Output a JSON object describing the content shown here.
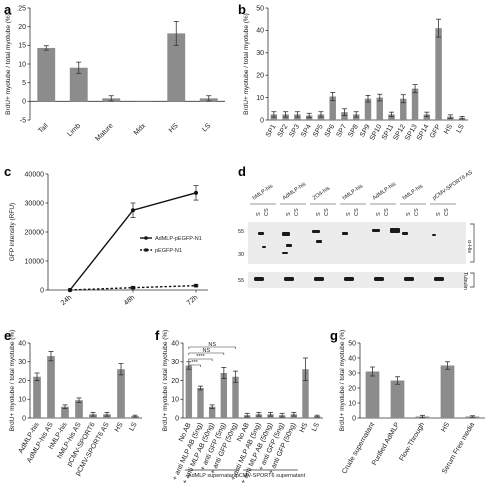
{
  "colors": {
    "bar": "#8c8c8c",
    "axis": "#333333",
    "band": "#1a1a1a",
    "blot_bg": "#e9e9e9"
  },
  "panels": {
    "a": {
      "letter": "a"
    },
    "b": {
      "letter": "b"
    },
    "c": {
      "letter": "c"
    },
    "d": {
      "letter": "d"
    },
    "e": {
      "letter": "e"
    },
    "f": {
      "letter": "f"
    },
    "g": {
      "letter": "g"
    }
  },
  "chart_data": [
    {
      "id": "a",
      "type": "bar",
      "ylabel": "BrdU+ myotube / total myotube (%)",
      "ylim": [
        -5,
        25
      ],
      "yticks": [
        -5,
        0,
        5,
        10,
        15,
        20,
        25
      ],
      "categories": [
        "Tail",
        "Limb",
        "Mature",
        "Mdx",
        "HS",
        "LS"
      ],
      "values": [
        14.3,
        9.0,
        0.8,
        0.0,
        18.2,
        0.8
      ],
      "errors": [
        0.6,
        1.5,
        0.7,
        0.0,
        3.2,
        0.7
      ]
    },
    {
      "id": "b",
      "type": "bar",
      "ylabel": "BrdU+ myotube / total myotube (%)",
      "ylim": [
        0,
        50
      ],
      "yticks": [
        0,
        10,
        20,
        30,
        40,
        50
      ],
      "categories": [
        "SP1",
        "SP2",
        "SP3",
        "SP4",
        "SP5",
        "SP6",
        "SP7",
        "SP8",
        "SP9",
        "SP10",
        "SP11",
        "SP12",
        "SP13",
        "SP14",
        "GFP",
        "HS",
        "LS"
      ],
      "values": [
        2.5,
        2.5,
        2.5,
        2.0,
        2.5,
        10.5,
        3.5,
        2.5,
        9.5,
        10.0,
        2.5,
        9.5,
        14.0,
        2.5,
        41.0,
        1.5,
        1.0
      ],
      "errors": [
        1.2,
        1.2,
        1.2,
        1.0,
        1.2,
        1.8,
        1.5,
        1.2,
        1.5,
        1.5,
        1.0,
        1.8,
        1.8,
        1.0,
        4.0,
        0.8,
        0.6
      ]
    },
    {
      "id": "c",
      "type": "line",
      "ylabel": "GFP intensity (RFU)",
      "ylim": [
        0,
        40000
      ],
      "yticks": [
        0,
        10000,
        20000,
        30000,
        40000
      ],
      "categories": [
        "24h",
        "48h",
        "72h"
      ],
      "series": [
        {
          "name": "AdMLP-pEGFP-N1",
          "values": [
            0,
            27500,
            33500
          ],
          "errors": [
            0,
            2500,
            2500
          ],
          "style": "solid"
        },
        {
          "name": "pEGFP-N1",
          "values": [
            0,
            800,
            1500
          ],
          "errors": [
            0,
            300,
            300
          ],
          "style": "dashed"
        }
      ]
    },
    {
      "id": "e",
      "type": "bar",
      "ylabel": "BrdU+ myotube / total myotube (%)",
      "ylim": [
        0,
        40
      ],
      "yticks": [
        0,
        10,
        20,
        30,
        40
      ],
      "categories": [
        "AdMLP-his",
        "AdMLP-his AS",
        "hMLP-his",
        "hMLP-his AS",
        "pCMV-SPORT6",
        "pCMV-SPORT6 AS",
        "HS",
        "LS"
      ],
      "values": [
        22.0,
        33.0,
        6.0,
        9.5,
        2.0,
        2.0,
        26.0,
        1.0
      ],
      "errors": [
        2.0,
        2.5,
        1.0,
        1.2,
        1.0,
        1.0,
        3.0,
        0.5
      ]
    },
    {
      "id": "f",
      "type": "bar",
      "ylabel": "BrdU+ myotube / total myotube (%)",
      "ylim": [
        0,
        40
      ],
      "yticks": [
        0,
        10,
        20,
        30,
        40
      ],
      "categories": [
        "No AB",
        "+ anti MLP AB (5ng)",
        "+ anti MLP AB (50ng)",
        "+ anti GFP (5ng)",
        "+ anti GFP (50ng)",
        "No AB",
        "+ anti MLP AB (5ng)",
        "+ anti MLP AB (50ng)",
        "+ anti GFP (5ng)",
        "+ anti GFP (50ng)",
        "HS",
        "LS"
      ],
      "values": [
        28.0,
        16.0,
        6.0,
        24.0,
        22.0,
        1.5,
        2.0,
        2.0,
        1.5,
        2.0,
        26.0,
        1.0
      ],
      "errors": [
        2.0,
        1.0,
        1.0,
        3.0,
        3.0,
        1.0,
        1.0,
        1.0,
        1.0,
        1.0,
        6.0,
        0.5
      ],
      "groups": [
        "AdMLP supernatant",
        "pCMV-SPORT6 supernatant"
      ],
      "significance": [
        "***",
        "****",
        "NS",
        "NS"
      ]
    },
    {
      "id": "g",
      "type": "bar",
      "ylabel": "BrdU+ myotube / total myotube (%)",
      "ylim": [
        0,
        50
      ],
      "yticks": [
        0,
        10,
        20,
        30,
        40,
        50
      ],
      "categories": [
        "Crude supernatant",
        "Purified AdMLP",
        "Flow-Through",
        "HS",
        "Serum Free media"
      ],
      "values": [
        31.0,
        25.0,
        1.0,
        35.0,
        1.0
      ],
      "errors": [
        3.0,
        2.5,
        0.8,
        2.5,
        0.5
      ]
    }
  ],
  "blot": {
    "lanes": [
      "hMLP-his",
      "AdMLP-his",
      "ZO4-his",
      "hMLP-his",
      "AdMLP-his",
      "hMLP-his",
      "pCMV-SPORT6 AS"
    ],
    "sublanes": [
      "",
      "S",
      "CS"
    ],
    "mw_markers": [
      "55",
      "30",
      "55"
    ],
    "right_labels": [
      "α-His",
      "Tubulin"
    ]
  }
}
